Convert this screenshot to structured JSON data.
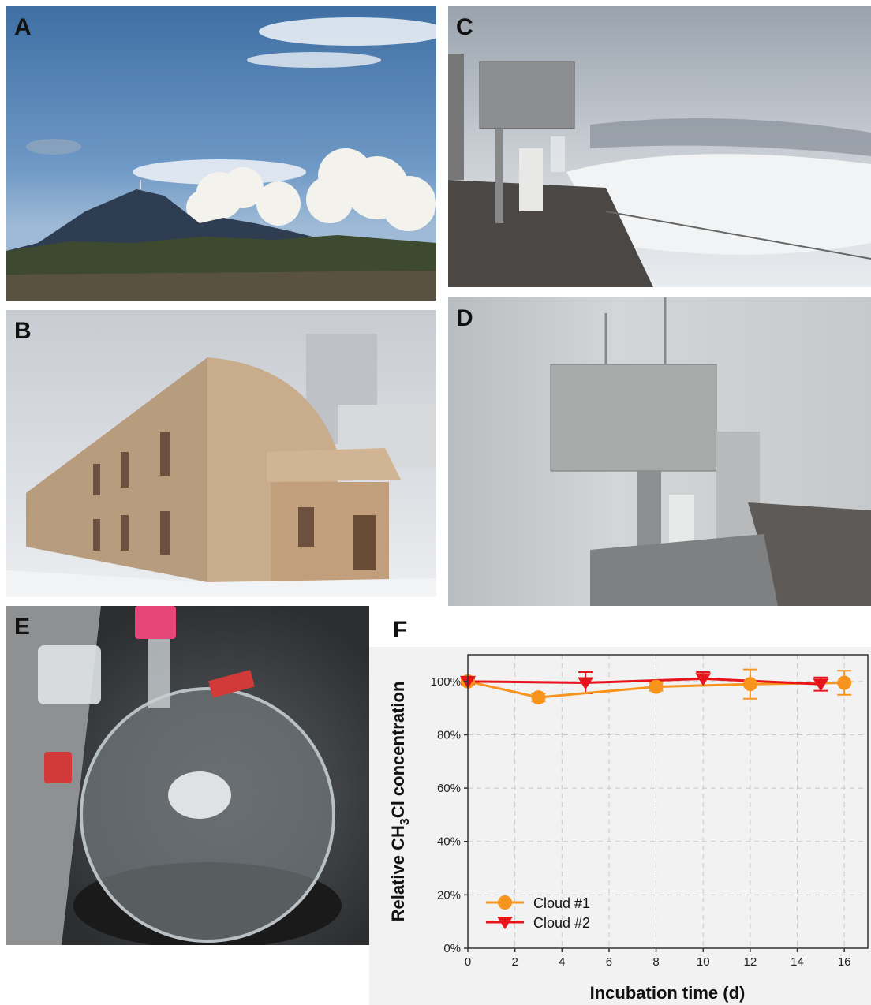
{
  "panels": {
    "A": {
      "label": "A"
    },
    "B": {
      "label": "B"
    },
    "C": {
      "label": "C"
    },
    "D": {
      "label": "D"
    },
    "E": {
      "label": "E"
    },
    "F": {
      "label": "F"
    }
  },
  "colors": {
    "cloud1": "#f7941d",
    "cloud2": "#e8141b"
  },
  "chart_data": {
    "type": "line",
    "title": "",
    "xlabel": "Incubation time (d)",
    "ylabel_parts": [
      "Relative CH",
      "3",
      "Cl concentration"
    ],
    "xlim": [
      0,
      17
    ],
    "ylim": [
      0,
      110
    ],
    "xticks": [
      0,
      2,
      4,
      6,
      8,
      10,
      12,
      14,
      16
    ],
    "yticks": [
      {
        "v": 0,
        "label": "0%"
      },
      {
        "v": 20,
        "label": "20%"
      },
      {
        "v": 40,
        "label": "40%"
      },
      {
        "v": 60,
        "label": "60%"
      },
      {
        "v": 80,
        "label": "80%"
      },
      {
        "v": 100,
        "label": "100%"
      }
    ],
    "grid": true,
    "legend_position": "bottom-left",
    "series": [
      {
        "name": "Cloud #1",
        "marker": "circle",
        "color": "#f7941d",
        "x": [
          0,
          3,
          8,
          12,
          16
        ],
        "y": [
          100,
          94,
          98,
          99,
          99.5
        ],
        "err": [
          1,
          1.5,
          1.5,
          5.5,
          4.5
        ]
      },
      {
        "name": "Cloud #2",
        "marker": "triangle-down",
        "color": "#e8141b",
        "x": [
          0,
          5,
          10,
          15
        ],
        "y": [
          100,
          99.5,
          101,
          99
        ],
        "err": [
          1,
          4,
          2.5,
          2.5
        ]
      }
    ]
  }
}
